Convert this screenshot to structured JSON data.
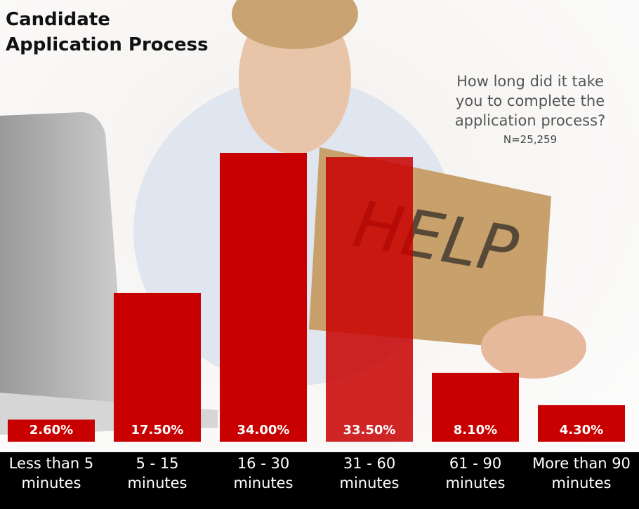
{
  "chart_data": {
    "type": "bar",
    "title": "Candidate\nApplication Process",
    "subtitle": "How long did it take\nyou to complete the\napplication process?",
    "note": "N=25,259",
    "annotations": [
      "HELP"
    ],
    "categories": [
      "Less than 5\nminutes",
      "5 - 15\nminutes",
      "16 - 30\nminutes",
      "31 - 60\nminutes",
      "61 - 90\nminutes",
      "More than 90\nminutes"
    ],
    "values": [
      2.6,
      17.5,
      34.0,
      33.5,
      8.1,
      4.3
    ],
    "value_labels": [
      "2.60%",
      "17.50%",
      "34.00%",
      "33.50%",
      "8.10%",
      "4.30%"
    ],
    "color": "#c80000"
  }
}
